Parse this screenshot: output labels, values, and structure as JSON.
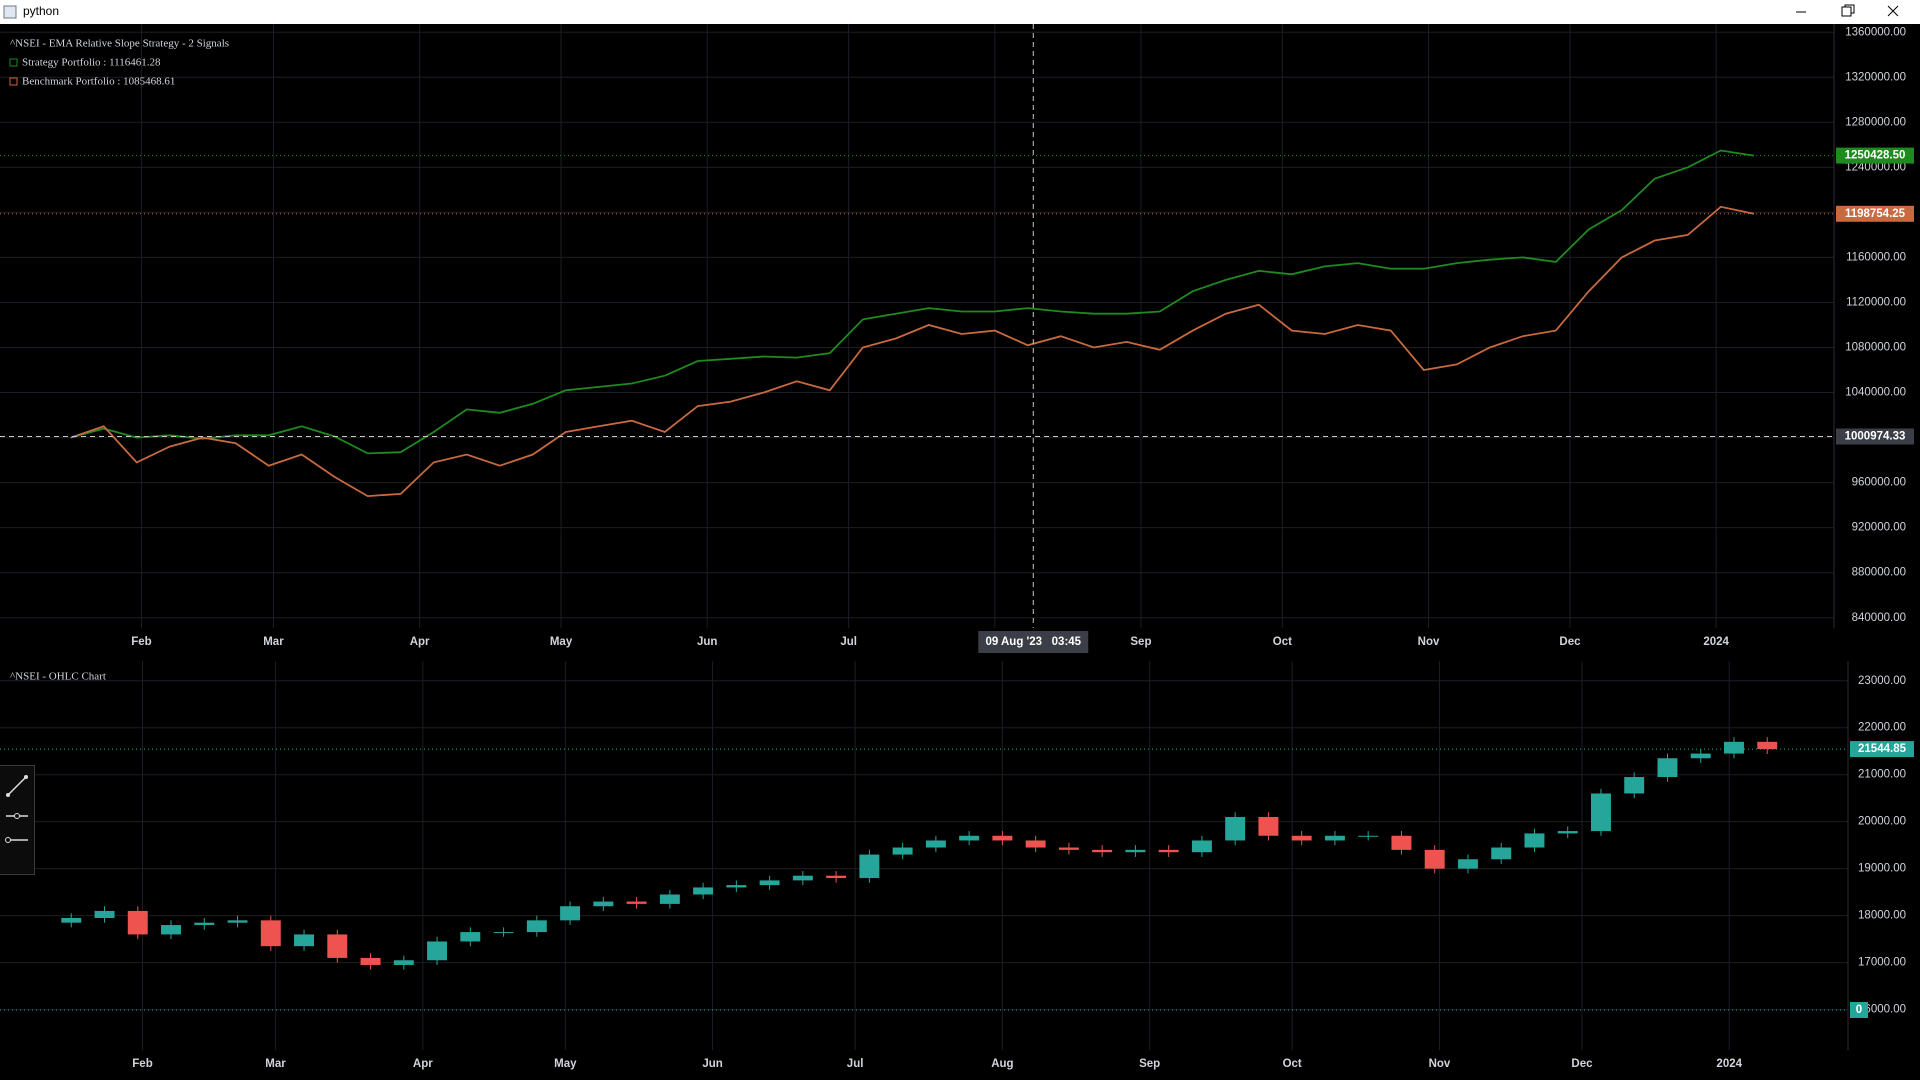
{
  "window": {
    "title": "python"
  },
  "chart_data": [
    {
      "type": "line",
      "title": "^NSEI - EMA Relative Slope Strategy - 2 Signals",
      "x": [
        16,
        23,
        30,
        37,
        44,
        51,
        58,
        65,
        72,
        79,
        86,
        93,
        100,
        107,
        114,
        121,
        128,
        135,
        142,
        149,
        156,
        163,
        170,
        177,
        184,
        191,
        198,
        205,
        212,
        219,
        226,
        233,
        240,
        247,
        254,
        261,
        268,
        275,
        282,
        289,
        296,
        303,
        310,
        317,
        324,
        331,
        338,
        345,
        352,
        359,
        366,
        373
      ],
      "series": [
        {
          "name": "Strategy Portfolio : 1116461.28",
          "color": "#1f8a1f",
          "values": [
            1000000,
            1008000,
            1000000,
            1002000,
            999000,
            1002000,
            1002000,
            1010000,
            1001000,
            986000,
            987000,
            1005000,
            1025000,
            1022000,
            1030000,
            1042000,
            1045000,
            1048000,
            1055000,
            1068000,
            1070000,
            1072000,
            1071000,
            1075000,
            1105000,
            1110000,
            1115000,
            1112000,
            1112000,
            1115000,
            1112000,
            1110000,
            1110000,
            1112000,
            1130000,
            1140000,
            1148000,
            1145000,
            1152000,
            1155000,
            1150000,
            1150000,
            1155000,
            1158000,
            1160000,
            1156000,
            1185000,
            1202000,
            1230000,
            1240000,
            1255000,
            1250428.5
          ],
          "last_value": {
            "value": 1250428.5,
            "label": "1250428.50"
          }
        },
        {
          "name": "Benchmark Portfolio : 1085468.61",
          "color": "#c8693f",
          "values": [
            1000000,
            1010000,
            978000,
            992000,
            1000000,
            995000,
            975000,
            985000,
            965000,
            948000,
            950000,
            978000,
            985000,
            975000,
            985000,
            1005000,
            1010000,
            1015000,
            1005000,
            1028000,
            1032000,
            1040000,
            1050000,
            1042000,
            1080000,
            1088000,
            1100000,
            1092000,
            1095000,
            1082000,
            1090000,
            1080000,
            1085000,
            1078000,
            1095000,
            1110000,
            1118000,
            1095000,
            1092000,
            1100000,
            1095000,
            1060000,
            1065000,
            1080000,
            1090000,
            1095000,
            1130000,
            1160000,
            1175000,
            1180000,
            1205000,
            1198754.25
          ],
          "last_value": {
            "value": 1198754.25,
            "label": "1198754.25"
          }
        }
      ],
      "xlim": [
        1,
        390
      ],
      "xticks": [
        {
          "value": 31,
          "label": "Feb"
        },
        {
          "value": 59,
          "label": "Mar"
        },
        {
          "value": 90,
          "label": "Apr"
        },
        {
          "value": 120,
          "label": "May"
        },
        {
          "value": 151,
          "label": "Jun"
        },
        {
          "value": 181,
          "label": "Jul"
        },
        {
          "value": 212,
          "label": "Aug"
        },
        {
          "value": 243,
          "label": "Sep"
        },
        {
          "value": 273,
          "label": "Oct"
        },
        {
          "value": 304,
          "label": "Nov"
        },
        {
          "value": 334,
          "label": "Dec"
        },
        {
          "value": 365,
          "label": "2024"
        }
      ],
      "ylim": [
        830900,
        1367300
      ],
      "yticks": [
        {
          "value": 840000,
          "label": "840000.00"
        },
        {
          "value": 880000,
          "label": "880000.00"
        },
        {
          "value": 920000,
          "label": "920000.00"
        },
        {
          "value": 960000,
          "label": "960000.00"
        },
        {
          "value": 1000000,
          "label": "1000000.00"
        },
        {
          "value": 1040000,
          "label": "1040000.00"
        },
        {
          "value": 1080000,
          "label": "1080000.00"
        },
        {
          "value": 1120000,
          "label": "1120000.00"
        },
        {
          "value": 1160000,
          "label": "1160000.00"
        },
        {
          "value": 1200000,
          "label": "1200000.00"
        },
        {
          "value": 1240000,
          "label": "1240000.00"
        },
        {
          "value": 1280000,
          "label": "1280000.00"
        },
        {
          "value": 1320000,
          "label": "1320000.00"
        },
        {
          "value": 1360000,
          "label": "1360000.00"
        }
      ],
      "crosshair": {
        "x": 220.16,
        "x_label": "09 Aug '23   03:45",
        "y": 1000974.33
      },
      "grid": true
    },
    {
      "type": "candlestick",
      "title": "^NSEI - OHLC Chart",
      "x": [
        16,
        23,
        30,
        37,
        44,
        51,
        58,
        65,
        72,
        79,
        86,
        93,
        100,
        107,
        114,
        121,
        128,
        135,
        142,
        149,
        156,
        163,
        170,
        177,
        184,
        191,
        198,
        205,
        212,
        219,
        226,
        233,
        240,
        247,
        254,
        261,
        268,
        275,
        282,
        289,
        296,
        303,
        310,
        317,
        324,
        331,
        338,
        345,
        352,
        359,
        366,
        373
      ],
      "open": [
        17850,
        17950,
        18100,
        17600,
        17800,
        17850,
        17900,
        17350,
        17600,
        17100,
        16950,
        17050,
        17450,
        17650,
        17650,
        17900,
        18200,
        18300,
        18250,
        18450,
        18600,
        18650,
        18750,
        18850,
        18800,
        19300,
        19450,
        19600,
        19700,
        19600,
        19450,
        19400,
        19350,
        19400,
        19350,
        19600,
        20100,
        19700,
        19600,
        19700,
        19700,
        19400,
        19000,
        19200,
        19450,
        19750,
        19800,
        20600,
        20950,
        21350,
        21450,
        21700
      ],
      "high": [
        18050,
        18200,
        18200,
        17900,
        17950,
        18000,
        18000,
        17700,
        17700,
        17200,
        17150,
        17550,
        17750,
        17750,
        18000,
        18300,
        18400,
        18400,
        18550,
        18700,
        18750,
        18850,
        18950,
        18950,
        19400,
        19550,
        19700,
        19800,
        19800,
        19700,
        19550,
        19500,
        19500,
        19500,
        19700,
        20200,
        20200,
        19800,
        19800,
        19800,
        19800,
        19500,
        19300,
        19550,
        19850,
        19900,
        20700,
        21050,
        21450,
        21550,
        21800,
        21800
      ],
      "low": [
        17750,
        17850,
        17500,
        17500,
        17700,
        17750,
        17250,
        17250,
        17000,
        16850,
        16850,
        16950,
        17350,
        17550,
        17550,
        17800,
        18100,
        18150,
        18150,
        18350,
        18500,
        18550,
        18650,
        18700,
        18700,
        19200,
        19350,
        19500,
        19500,
        19350,
        19300,
        19250,
        19250,
        19250,
        19250,
        19500,
        19600,
        19500,
        19500,
        19600,
        19300,
        18900,
        18900,
        19100,
        19350,
        19650,
        19700,
        20500,
        20850,
        21250,
        21350,
        21440
      ],
      "close": [
        17950,
        18100,
        17600,
        17800,
        17850,
        17900,
        17350,
        17600,
        17100,
        16950,
        17050,
        17450,
        17650,
        17650,
        17900,
        18200,
        18300,
        18250,
        18450,
        18600,
        18650,
        18750,
        18850,
        18800,
        19300,
        19450,
        19600,
        19700,
        19600,
        19450,
        19400,
        19350,
        19400,
        19350,
        19600,
        20100,
        19700,
        19600,
        19700,
        19700,
        19400,
        19000,
        19200,
        19450,
        19750,
        19800,
        20600,
        20950,
        21350,
        21450,
        21700,
        21544.85
      ],
      "up_color": "#26a69a",
      "down_color": "#ef5350",
      "last_value": 21544.85,
      "overlay_value": 0,
      "xlim": [
        1,
        390
      ],
      "xticks": [
        {
          "value": 31,
          "label": "Feb"
        },
        {
          "value": 59,
          "label": "Mar"
        },
        {
          "value": 90,
          "label": "Apr"
        },
        {
          "value": 120,
          "label": "May"
        },
        {
          "value": 151,
          "label": "Jun"
        },
        {
          "value": 181,
          "label": "Jul"
        },
        {
          "value": 212,
          "label": "Aug"
        },
        {
          "value": 243,
          "label": "Sep"
        },
        {
          "value": 273,
          "label": "Oct"
        },
        {
          "value": 304,
          "label": "Nov"
        },
        {
          "value": 334,
          "label": "Dec"
        },
        {
          "value": 365,
          "label": "2024"
        }
      ],
      "ylim": [
        15140,
        23420
      ],
      "yticks": [
        {
          "value": 16000,
          "label": "16000.00"
        },
        {
          "value": 17000,
          "label": "17000.00"
        },
        {
          "value": 18000,
          "label": "18000.00"
        },
        {
          "value": 19000,
          "label": "19000.00"
        },
        {
          "value": 20000,
          "label": "20000.00"
        },
        {
          "value": 21000,
          "label": "21000.00"
        },
        {
          "value": 22000,
          "label": "22000.00"
        },
        {
          "value": 23000,
          "label": "23000.00"
        }
      ],
      "grid": true
    }
  ]
}
